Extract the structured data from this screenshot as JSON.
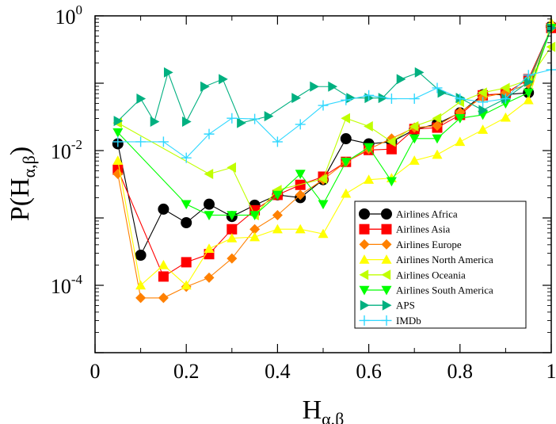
{
  "chart_data": {
    "type": "line",
    "xlabel": "H",
    "xlabel_sub": "α,β",
    "ylabel": "P(H",
    "ylabel_sub": "α,β",
    "ylabel_close": ")",
    "xlim": [
      0,
      1
    ],
    "ylim_log10": [
      -5,
      0
    ],
    "y_scale": "log",
    "grid": false,
    "legend_position": "right",
    "x_ticks": [
      {
        "value": 0,
        "label": "0"
      },
      {
        "value": 0.2,
        "label": "0.2"
      },
      {
        "value": 0.4,
        "label": "0.4"
      },
      {
        "value": 0.6,
        "label": "0.6"
      },
      {
        "value": 0.8,
        "label": "0.8"
      },
      {
        "value": 1,
        "label": "1"
      }
    ],
    "y_ticks": [
      {
        "exp": 0,
        "base": "10",
        "sup": "0"
      },
      {
        "exp": -2,
        "base": "10",
        "sup": "-2"
      },
      {
        "exp": -4,
        "base": "10",
        "sup": "-4"
      }
    ],
    "series": [
      {
        "name": "Airlines Africa",
        "color": "#000000",
        "marker": "circle",
        "x": [
          0.05,
          0.1,
          0.15,
          0.2,
          0.25,
          0.3,
          0.35,
          0.4,
          0.45,
          0.5,
          0.55,
          0.6,
          0.65,
          0.7,
          0.75,
          0.8,
          0.85,
          0.9,
          0.95,
          1.0
        ],
        "y": [
          0.0126,
          0.00028,
          0.00135,
          0.00085,
          0.0016,
          0.00105,
          0.00155,
          0.0022,
          0.002,
          0.0037,
          0.015,
          0.0126,
          0.0135,
          0.0204,
          0.025,
          0.0363,
          0.0676,
          0.0676,
          0.0724,
          0.6918
        ]
      },
      {
        "name": "Airlines Asia",
        "color": "#ff0000",
        "marker": "square",
        "x": [
          0.05,
          0.15,
          0.2,
          0.25,
          0.3,
          0.35,
          0.4,
          0.45,
          0.5,
          0.55,
          0.6,
          0.65,
          0.7,
          0.75,
          0.8,
          0.85,
          0.9,
          0.95,
          1.0
        ],
        "y": [
          0.0052,
          0.000135,
          0.00022,
          0.00029,
          0.00068,
          0.0013,
          0.0022,
          0.0031,
          0.0041,
          0.0068,
          0.0102,
          0.0105,
          0.0209,
          0.0219,
          0.0339,
          0.0661,
          0.0708,
          0.1148,
          0.6607
        ]
      },
      {
        "name": "Airlines Europe",
        "color": "#ff8000",
        "marker": "diamond",
        "x": [
          0.05,
          0.1,
          0.15,
          0.2,
          0.25,
          0.3,
          0.35,
          0.4,
          0.45,
          0.5,
          0.55,
          0.6,
          0.65,
          0.7,
          0.75,
          0.8,
          0.85,
          0.9,
          0.95,
          1.0
        ],
        "y": [
          0.0045,
          6.5e-05,
          6.5e-05,
          9.5e-05,
          0.00013,
          0.00025,
          0.00068,
          0.0011,
          0.0022,
          0.0037,
          0.0068,
          0.0105,
          0.0151,
          0.0219,
          0.0234,
          0.0372,
          0.0617,
          0.0724,
          0.0977,
          0.6607
        ]
      },
      {
        "name": "Airlines North America",
        "color": "#ffff00",
        "marker": "triangle-up",
        "x": [
          0.05,
          0.1,
          0.15,
          0.2,
          0.25,
          0.3,
          0.35,
          0.4,
          0.45,
          0.5,
          0.55,
          0.6,
          0.65,
          0.7,
          0.75,
          0.8,
          0.85,
          0.9,
          0.95,
          1.0
        ],
        "y": [
          0.0071,
          0.0001,
          0.0002,
          0.0001,
          0.00035,
          0.0005,
          0.00052,
          0.00068,
          0.00068,
          0.00058,
          0.0023,
          0.0037,
          0.0039,
          0.0071,
          0.0087,
          0.0135,
          0.0204,
          0.0309,
          0.0562,
          0.7943
        ]
      },
      {
        "name": "Airlines Oceania",
        "color": "#c0ff00",
        "marker": "triangle-left",
        "x": [
          0.05,
          0.25,
          0.3,
          0.35,
          0.4,
          0.5,
          0.55,
          0.6,
          0.65,
          0.7,
          0.75,
          0.8,
          0.85,
          0.9,
          0.95,
          1.0
        ],
        "y": [
          0.0257,
          0.0045,
          0.0056,
          0.0011,
          0.0026,
          0.0038,
          0.0302,
          0.0229,
          0.0135,
          0.0229,
          0.0302,
          0.0525,
          0.0724,
          0.0851,
          0.1122,
          0.3467
        ]
      },
      {
        "name": "Airlines South America",
        "color": "#00ff00",
        "marker": "triangle-down",
        "x": [
          0.05,
          0.2,
          0.25,
          0.3,
          0.35,
          0.4,
          0.45,
          0.5,
          0.55,
          0.6,
          0.65,
          0.7,
          0.75,
          0.8,
          0.85,
          0.9,
          0.95,
          1.0
        ],
        "y": [
          0.0186,
          0.0016,
          0.0011,
          0.0011,
          0.0011,
          0.0022,
          0.0045,
          0.0016,
          0.0068,
          0.0112,
          0.0035,
          0.0151,
          0.0151,
          0.0302,
          0.0339,
          0.0501,
          0.0724,
          0.6607
        ]
      },
      {
        "name": "APS",
        "color": "#00b080",
        "marker": "triangle-right",
        "x": [
          0.05,
          0.1,
          0.13,
          0.16,
          0.2,
          0.24,
          0.28,
          0.32,
          0.38,
          0.44,
          0.48,
          0.52,
          0.56,
          0.6,
          0.63,
          0.67,
          0.71,
          0.76,
          0.8,
          0.85,
          0.9,
          0.95,
          1.0
        ],
        "y": [
          0.0275,
          0.0589,
          0.0269,
          0.1445,
          0.0269,
          0.0891,
          0.1148,
          0.0257,
          0.0324,
          0.0603,
          0.0891,
          0.0891,
          0.0603,
          0.0603,
          0.0603,
          0.1148,
          0.1445,
          0.0724,
          0.0603,
          0.0398,
          0.0589,
          0.1047,
          0.6607
        ]
      },
      {
        "name": "IMDb",
        "color": "#30d8ff",
        "marker": "plus",
        "x": [
          0.05,
          0.1,
          0.15,
          0.2,
          0.25,
          0.3,
          0.35,
          0.4,
          0.45,
          0.5,
          0.55,
          0.6,
          0.65,
          0.7,
          0.75,
          0.8,
          0.85,
          0.9,
          0.95,
          1.0
        ],
        "y": [
          0.0135,
          0.0135,
          0.0135,
          0.0078,
          0.0176,
          0.0302,
          0.0295,
          0.0135,
          0.0245,
          0.0468,
          0.0562,
          0.0661,
          0.0589,
          0.0589,
          0.0851,
          0.0589,
          0.0525,
          0.0589,
          0.1318,
          0.1585
        ]
      }
    ]
  }
}
